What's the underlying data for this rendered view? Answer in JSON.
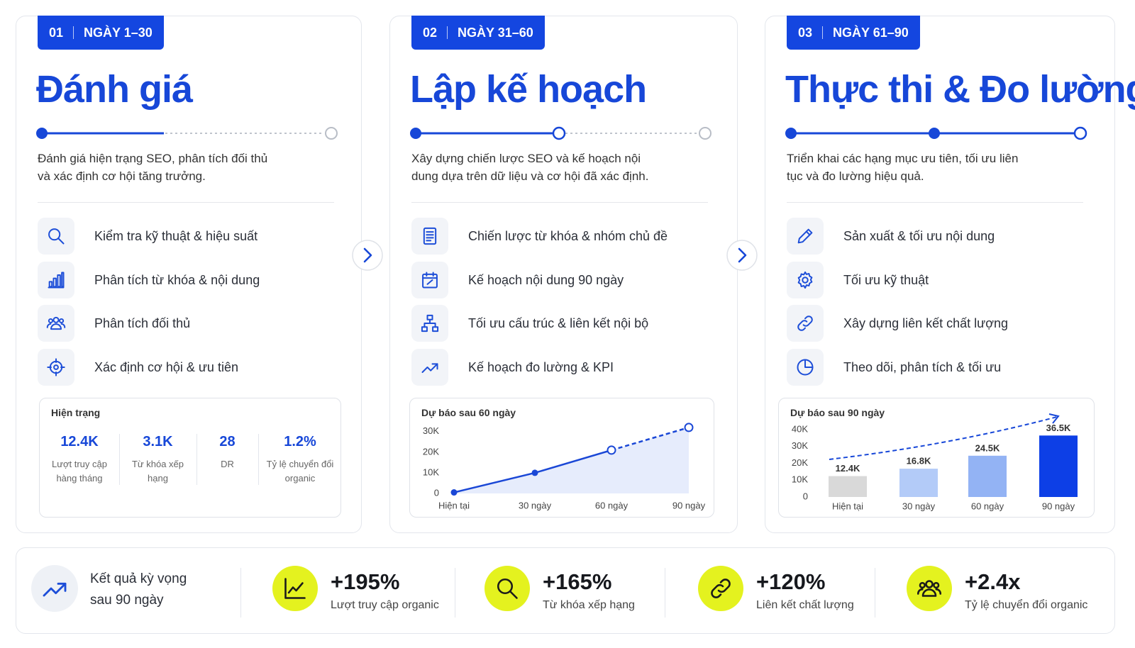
{
  "phases": [
    {
      "number": "01",
      "period": "NGÀY 1–30",
      "title": "Đánh giá",
      "description": "Đánh giá hiện trạng SEO, phân tích đối thủ và xác định cơ hội tăng trưởng.",
      "items": [
        "Kiểm tra kỹ thuật & hiệu suất",
        "Phân tích từ khóa & nội dung",
        "Phân tích đối thủ",
        "Xác định cơ hội & ưu tiên"
      ],
      "panel": {
        "title": "Hiện trạng",
        "stats": [
          {
            "value": "12.4K",
            "label": "Lượt truy cập hàng tháng"
          },
          {
            "value": "3.1K",
            "label": "Từ khóa xếp hạng"
          },
          {
            "value": "28",
            "label": "DR"
          },
          {
            "value": "1.2%",
            "label": "Tỷ lệ chuyển đổi organic"
          }
        ]
      }
    },
    {
      "number": "02",
      "period": "NGÀY 31–60",
      "title": "Lập kế hoạch",
      "description": "Xây dựng chiến lược SEO và kế hoạch nội dung dựa trên dữ liệu và cơ hội đã xác định.",
      "items": [
        "Chiến lược từ khóa & nhóm chủ đề",
        "Kế hoạch nội dung 90 ngày",
        "Tối ưu cấu trúc & liên kết nội bộ",
        "Kế hoạch đo lường & KPI"
      ],
      "panel": {
        "chart": {
          "type": "line",
          "title": "Dự báo sau 60 ngày",
          "categories": [
            "Hiện tại",
            "30 ngày",
            "60 ngày",
            "90 ngày"
          ],
          "values": [
            500,
            10000,
            21000,
            32000
          ],
          "color": "#1a47d6",
          "ylim": [
            0,
            33000
          ],
          "yticks": [
            0,
            {
              "value": 10000,
              "label": "10K"
            },
            {
              "value": 20000,
              "label": "20K"
            },
            {
              "value": 30000,
              "label": "30K"
            }
          ]
        }
      }
    },
    {
      "number": "03",
      "period": "NGÀY 61–90",
      "title": "Thực thi & Đo lường",
      "description": "Triển khai các hạng mục ưu tiên, tối ưu liên tục và đo lường hiệu quả.",
      "items": [
        "Sản xuất & tối ưu nội dung",
        "Tối ưu kỹ thuật",
        "Xây dựng liên kết chất lượng",
        "Theo dõi, phân tích & tối ưu"
      ],
      "panel": {
        "chart": {
          "type": "bar",
          "title": "Dự báo sau 90 ngày",
          "categories": [
            "Hiện tại",
            "30 ngày",
            "60 ngày",
            "90 ngày"
          ],
          "values": [
            12400,
            16800,
            24500,
            36500
          ],
          "value_labels": [
            "12.4K",
            "16.8K",
            "24.5K",
            "36.5K"
          ],
          "colors": [
            "#d9d9d9",
            "#b3cbf8",
            "#93b3f4",
            "#0d3fe6"
          ],
          "ylim": [
            0,
            40000
          ],
          "yticks": [
            0,
            {
              "value": 10000,
              "label": "10K"
            },
            {
              "value": 20000,
              "label": "20K"
            },
            {
              "value": 30000,
              "label": "30K"
            },
            {
              "value": 40000,
              "label": "40K"
            }
          ]
        }
      }
    }
  ],
  "summary": {
    "title": "Kết quả kỳ vọng sau 90 ngày",
    "metrics": [
      {
        "value": "+195%",
        "label": "Lượt truy cập organic"
      },
      {
        "value": "+165%",
        "label": "Từ khóa xếp hạng"
      },
      {
        "value": "+120%",
        "label": "Liên kết chất lượng"
      },
      {
        "value": "+2.4x",
        "label": "Tỷ lệ chuyển đổi organic"
      }
    ]
  }
}
